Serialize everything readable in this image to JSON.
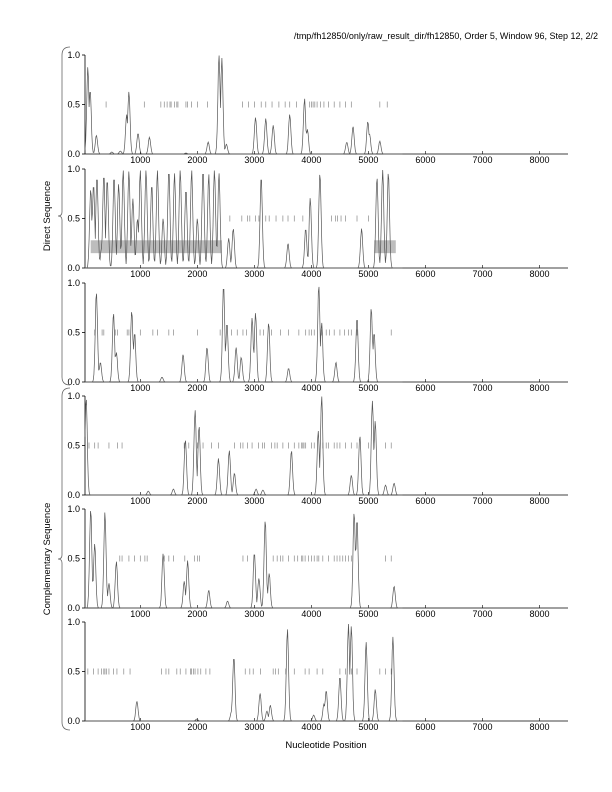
{
  "title": "/tmp/fh12850/only/raw_result_dir/fh12850, Order 5, Window 96, Step 12, 2/2",
  "chart_data": {
    "type": "line",
    "xlabel": "Nucleotide Position",
    "group_labels": [
      "Direct Sequence",
      "Complementary Sequence"
    ],
    "xlim": [
      30,
      8500
    ],
    "ylim": [
      0,
      1
    ],
    "xticks": [
      "1000",
      "2000",
      "3000",
      "4000",
      "5000",
      "6000",
      "7000",
      "8000"
    ],
    "yticks": [
      "0.0",
      "0.5",
      "1.0"
    ],
    "panels": [
      {
        "name": "direct-frame-1",
        "peaks": [
          [
            80,
            0.88
          ],
          [
            120,
            0.65
          ],
          [
            230,
            0.19
          ],
          [
            500,
            0.02
          ],
          [
            650,
            0.03
          ],
          [
            760,
            0.4
          ],
          [
            800,
            0.63
          ],
          [
            960,
            0.21
          ],
          [
            1160,
            0.17
          ],
          [
            1800,
            0.01
          ],
          [
            2190,
            0.12
          ],
          [
            2380,
            1.0
          ],
          [
            2430,
            0.97
          ],
          [
            2510,
            0.1
          ],
          [
            3020,
            0.37
          ],
          [
            3200,
            0.36
          ],
          [
            3330,
            0.29
          ],
          [
            3620,
            0.4
          ],
          [
            3880,
            0.56
          ],
          [
            3930,
            0.25
          ],
          [
            4620,
            0.12
          ],
          [
            4730,
            0.28
          ],
          [
            4990,
            0.33
          ],
          [
            5020,
            0.2
          ],
          [
            5200,
            0.13
          ]
        ],
        "stops": [
          400,
          1070,
          1360,
          1420,
          1470,
          1520,
          1540,
          1600,
          1640,
          1660,
          1800,
          1830,
          1900,
          2000,
          2180,
          2790,
          2900,
          3000,
          3120,
          3200,
          3310,
          3430,
          3540,
          3620,
          3740,
          3970,
          4000,
          4030,
          4060,
          4100,
          4160,
          4220,
          4300,
          4400,
          4500,
          4600,
          4700,
          5200,
          5330
        ]
      },
      {
        "name": "direct-frame-2",
        "peaks": [
          [
            130,
            0.8
          ],
          [
            180,
            0.85
          ],
          [
            240,
            0.93
          ],
          [
            320,
            0.2
          ],
          [
            360,
            0.95
          ],
          [
            420,
            0.9
          ],
          [
            540,
            0.93
          ],
          [
            620,
            0.85
          ],
          [
            700,
            0.99
          ],
          [
            800,
            0.98
          ],
          [
            870,
            0.7
          ],
          [
            950,
            0.5
          ],
          [
            1000,
            0.99
          ],
          [
            1100,
            0.99
          ],
          [
            1200,
            0.85
          ],
          [
            1300,
            0.99
          ],
          [
            1400,
            0.5
          ],
          [
            1500,
            0.99
          ],
          [
            1600,
            0.96
          ],
          [
            1700,
            0.99
          ],
          [
            1800,
            0.8
          ],
          [
            1900,
            0.99
          ],
          [
            2000,
            0.5
          ],
          [
            2100,
            0.99
          ],
          [
            2200,
            0.95
          ],
          [
            2300,
            0.99
          ],
          [
            2380,
            0.96
          ],
          [
            2550,
            0.3
          ],
          [
            2630,
            0.4
          ],
          [
            3120,
            0.93
          ],
          [
            3590,
            0.25
          ],
          [
            3900,
            0.4
          ],
          [
            3980,
            0.71
          ],
          [
            4150,
            0.96
          ],
          [
            4880,
            0.4
          ],
          [
            5150,
            0.92
          ],
          [
            5250,
            0.99
          ],
          [
            5350,
            0.97
          ]
        ],
        "stops": [
          2570,
          2780,
          2880,
          2920,
          3020,
          3080,
          3200,
          3260,
          3380,
          3500,
          3590,
          3700,
          3850,
          4350,
          4420,
          4460,
          4520,
          4600,
          4800,
          5000
        ],
        "genes": [
          [
            130,
            2430
          ],
          [
            5100,
            5480
          ]
        ]
      },
      {
        "name": "direct-frame-3",
        "peaks": [
          [
            230,
            0.91
          ],
          [
            300,
            0.2
          ],
          [
            530,
            0.7
          ],
          [
            580,
            0.3
          ],
          [
            850,
            0.72
          ],
          [
            900,
            0.5
          ],
          [
            1380,
            0.05
          ],
          [
            1750,
            0.28
          ],
          [
            2170,
            0.35
          ],
          [
            2460,
            0.98
          ],
          [
            2520,
            0.6
          ],
          [
            2680,
            0.35
          ],
          [
            2770,
            0.25
          ],
          [
            2960,
            0.65
          ],
          [
            3020,
            0.7
          ],
          [
            3250,
            0.6
          ],
          [
            3600,
            0.14
          ],
          [
            4130,
            0.98
          ],
          [
            4180,
            0.6
          ],
          [
            4430,
            0.2
          ],
          [
            4800,
            0.65
          ],
          [
            5050,
            0.75
          ],
          [
            5100,
            0.5
          ]
        ],
        "stops": [
          200,
          330,
          360,
          560,
          600,
          770,
          800,
          1000,
          1220,
          1300,
          1500,
          1580,
          2000,
          2400,
          2600,
          2700,
          2800,
          2860,
          3100,
          3160,
          3300,
          3460,
          3600,
          3780,
          3900,
          3960,
          4000,
          4050,
          4180,
          4260,
          4320,
          4400,
          4500,
          4580,
          4650,
          4700,
          4800,
          5400
        ]
      },
      {
        "name": "reverse-frame-1",
        "peaks": [
          [
            50,
            0.98
          ],
          [
            1140,
            0.04
          ],
          [
            1580,
            0.06
          ],
          [
            1790,
            0.56
          ],
          [
            1960,
            0.86
          ],
          [
            2030,
            0.7
          ],
          [
            2370,
            0.37
          ],
          [
            2560,
            0.45
          ],
          [
            2650,
            0.22
          ],
          [
            3030,
            0.06
          ],
          [
            3150,
            0.05
          ],
          [
            3650,
            0.45
          ],
          [
            4120,
            0.65
          ],
          [
            4180,
            1.0
          ],
          [
            4700,
            0.2
          ],
          [
            4850,
            0.6
          ],
          [
            5070,
            0.95
          ],
          [
            5120,
            0.75
          ],
          [
            5300,
            0.1
          ],
          [
            5450,
            0.12
          ]
        ],
        "stops": [
          100,
          200,
          260,
          450,
          600,
          680,
          1770,
          1850,
          2000,
          2100,
          2250,
          2370,
          2650,
          2760,
          2800,
          2880,
          2960,
          3070,
          3140,
          3180,
          3300,
          3360,
          3400,
          3500,
          3600,
          3700,
          3780,
          3830,
          3850,
          3870,
          3900,
          4000,
          4050,
          4200,
          4260,
          4300,
          4400,
          4450,
          4500,
          4600,
          4700,
          4800,
          5000,
          5100,
          5300,
          5400
        ]
      },
      {
        "name": "reverse-frame-2",
        "peaks": [
          [
            130,
            1.0
          ],
          [
            200,
            0.65
          ],
          [
            380,
            0.97
          ],
          [
            450,
            0.25
          ],
          [
            580,
            0.47
          ],
          [
            1400,
            0.55
          ],
          [
            1770,
            0.27
          ],
          [
            1830,
            0.48
          ],
          [
            2200,
            0.18
          ],
          [
            2530,
            0.07
          ],
          [
            3000,
            0.56
          ],
          [
            3080,
            0.3
          ],
          [
            3190,
            0.89
          ],
          [
            3260,
            0.35
          ],
          [
            4750,
            0.97
          ],
          [
            4800,
            0.9
          ],
          [
            5450,
            0.22
          ]
        ],
        "stops": [
          640,
          680,
          800,
          900,
          1000,
          1080,
          1120,
          1420,
          1500,
          1580,
          1780,
          1950,
          2000,
          2040,
          2800,
          2880,
          3330,
          3400,
          3460,
          3500,
          3600,
          3700,
          3760,
          3830,
          3850,
          3890,
          3950,
          4000,
          4050,
          4100,
          4130,
          4200,
          4300,
          4400,
          4450,
          4500,
          4550,
          4600,
          4650,
          4700,
          5300,
          5400
        ]
      },
      {
        "name": "reverse-frame-3",
        "peaks": [
          [
            940,
            0.2
          ],
          [
            1990,
            0.02
          ],
          [
            2600,
            0.1
          ],
          [
            2640,
            0.65
          ],
          [
            3100,
            0.28
          ],
          [
            3220,
            0.1
          ],
          [
            3280,
            0.16
          ],
          [
            3580,
            0.93
          ],
          [
            4040,
            0.06
          ],
          [
            4220,
            0.17
          ],
          [
            4260,
            0.31
          ],
          [
            4500,
            0.45
          ],
          [
            4650,
            0.98
          ],
          [
            4700,
            0.96
          ],
          [
            4960,
            0.8
          ],
          [
            5120,
            0.32
          ],
          [
            5430,
            0.85
          ]
        ],
        "stops": [
          80,
          180,
          260,
          320,
          360,
          380,
          410,
          450,
          530,
          590,
          710,
          820,
          1370,
          1450,
          1500,
          1640,
          1700,
          1800,
          1880,
          1900,
          1930,
          1960,
          2010,
          2060,
          2150,
          2220,
          2840,
          2920,
          2980,
          3110,
          3330,
          3370,
          3420,
          3550,
          3700,
          3890,
          3960,
          4100,
          4200,
          4500,
          4600,
          4700,
          4800,
          5200,
          5300,
          5400
        ]
      }
    ]
  }
}
